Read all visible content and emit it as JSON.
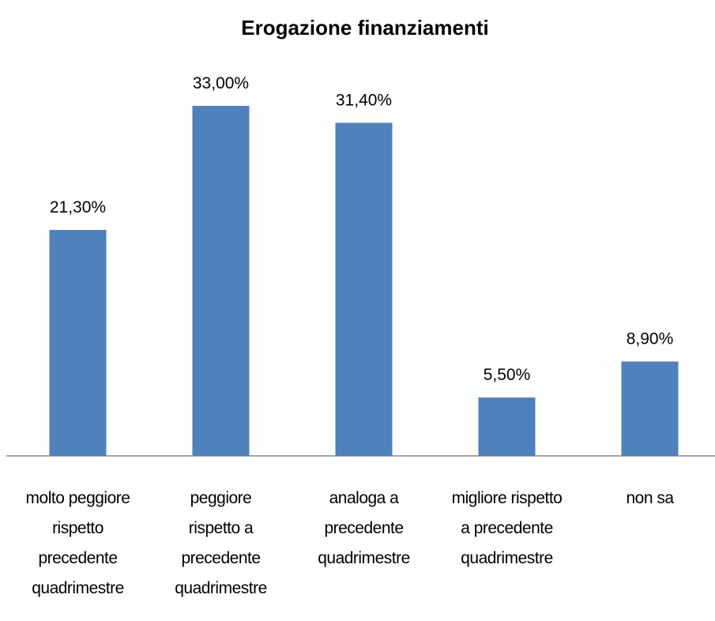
{
  "chart_data": {
    "type": "bar",
    "title": "Erogazione finanziamenti",
    "categories": [
      "molto peggiore\nrispetto\nprecedente\nquadrimestre",
      "peggiore\nrispetto a\nprecedente\nquadrimestre",
      "analoga a\nprecedente\nquadrimestre",
      "migliore rispetto\na precedente\nquadrimestre",
      "non sa"
    ],
    "values": [
      21.3,
      33,
      31.4,
      5.5,
      8.9
    ],
    "value_labels": [
      "21,30%",
      "33,00%",
      "31,40%",
      "5,50%",
      "8,90%"
    ],
    "color": "#4f81bd"
  }
}
